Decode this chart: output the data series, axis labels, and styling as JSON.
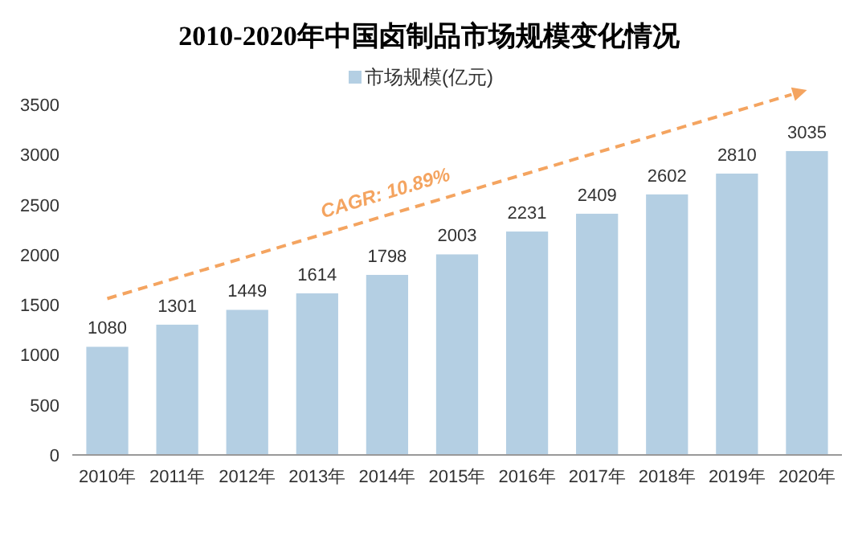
{
  "chart_data": {
    "type": "bar",
    "title": "2010-2020年中国卤制品市场规模变化情况",
    "categories": [
      "2010年",
      "2011年",
      "2012年",
      "2013年",
      "2014年",
      "2015年",
      "2016年",
      "2017年",
      "2018年",
      "2019年",
      "2020年"
    ],
    "series": [
      {
        "name": "市场规模(亿元)",
        "color": "#b4cfe3",
        "values": [
          1080,
          1301,
          1449,
          1614,
          1798,
          2003,
          2231,
          2409,
          2602,
          2810,
          3035
        ]
      }
    ],
    "ylim": [
      0,
      3500
    ],
    "yticks": [
      0,
      500,
      1000,
      1500,
      2000,
      2500,
      3000,
      3500
    ],
    "data_labels": true,
    "legend": "top",
    "grid": false,
    "annotations": [
      "CAGR: 10.89%"
    ]
  }
}
